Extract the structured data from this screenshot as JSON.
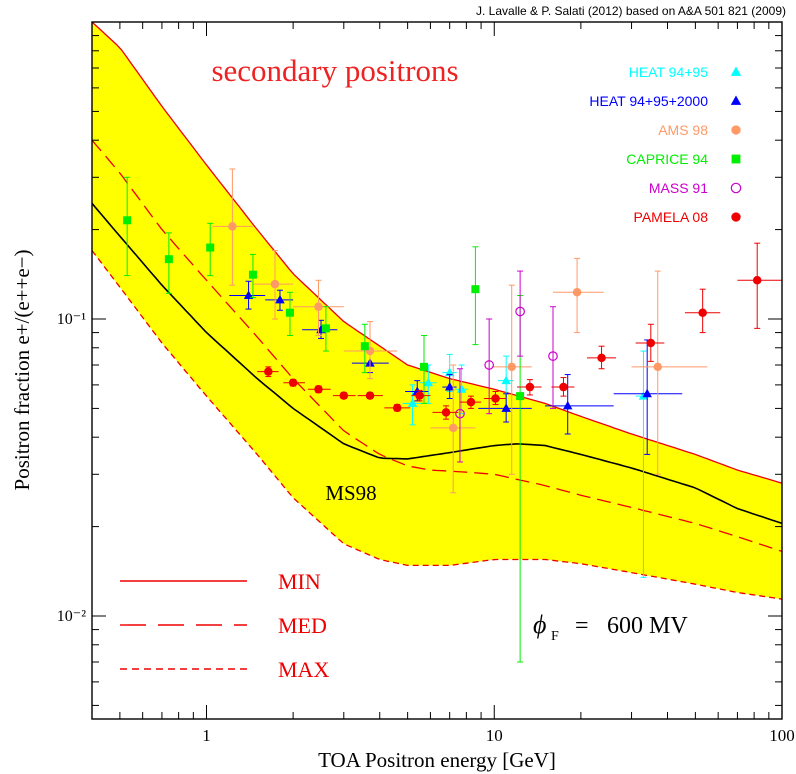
{
  "chart_data": {
    "type": "scatter",
    "credit": "J. Lavalle & P. Salati (2012) based on A&A 501 821 (2009)",
    "title": "secondary positrons",
    "xlabel": "TOA Positron energy  [GeV]",
    "ylabel": "Positron fraction e+/(e++e−)",
    "xscale": "log",
    "yscale": "log",
    "xlim": [
      0.4,
      100
    ],
    "ylim": [
      0.0045,
      1.0
    ],
    "x_ticks": [
      {
        "v": 1,
        "label": "1"
      },
      {
        "v": 10,
        "label": "10"
      },
      {
        "v": 100,
        "label": "100"
      }
    ],
    "y_ticks": [
      {
        "v": 0.1,
        "label": "10⁻¹"
      },
      {
        "v": 0.01,
        "label": "10⁻²"
      }
    ],
    "curve_label": "MS98",
    "phi_label": "600 MV",
    "phi_symbol": "ϕ",
    "phi_subscript": "F",
    "band_color": "#ffff00",
    "curves": {
      "min_upper": [
        [
          0.4,
          1.0
        ],
        [
          0.5,
          0.82
        ],
        [
          0.7,
          0.52
        ],
        [
          1.0,
          0.33
        ],
        [
          1.5,
          0.2
        ],
        [
          2.0,
          0.142
        ],
        [
          3.0,
          0.098
        ],
        [
          5.0,
          0.07
        ],
        [
          7.0,
          0.063
        ],
        [
          10.0,
          0.058
        ],
        [
          15.0,
          0.052
        ],
        [
          20.0,
          0.047
        ],
        [
          30.0,
          0.041
        ],
        [
          50.0,
          0.035
        ],
        [
          70.0,
          0.031
        ],
        [
          100.0,
          0.028
        ]
      ],
      "med": [
        [
          0.4,
          0.4
        ],
        [
          0.5,
          0.31
        ],
        [
          0.7,
          0.2
        ],
        [
          1.0,
          0.135
        ],
        [
          1.5,
          0.087
        ],
        [
          2.0,
          0.063
        ],
        [
          3.0,
          0.042
        ],
        [
          4.0,
          0.035
        ],
        [
          5.0,
          0.032
        ],
        [
          6.0,
          0.031
        ],
        [
          8.0,
          0.0305
        ],
        [
          10.0,
          0.03
        ],
        [
          15.0,
          0.0275
        ],
        [
          20.0,
          0.0255
        ],
        [
          30.0,
          0.0232
        ],
        [
          50.0,
          0.0205
        ],
        [
          70.0,
          0.0185
        ],
        [
          100.0,
          0.0165
        ]
      ],
      "max_lower": [
        [
          0.4,
          0.17
        ],
        [
          0.5,
          0.128
        ],
        [
          0.7,
          0.083
        ],
        [
          1.0,
          0.055
        ],
        [
          1.5,
          0.035
        ],
        [
          2.0,
          0.025
        ],
        [
          3.0,
          0.0175
        ],
        [
          4.0,
          0.0155
        ],
        [
          5.0,
          0.0148
        ],
        [
          7.0,
          0.0148
        ],
        [
          10.0,
          0.0155
        ],
        [
          15.0,
          0.0155
        ],
        [
          20.0,
          0.015
        ],
        [
          30.0,
          0.014
        ],
        [
          50.0,
          0.0128
        ],
        [
          70.0,
          0.012
        ],
        [
          100.0,
          0.0114
        ]
      ],
      "ms98": [
        [
          0.4,
          0.245
        ],
        [
          0.5,
          0.19
        ],
        [
          0.7,
          0.13
        ],
        [
          1.0,
          0.09
        ],
        [
          1.5,
          0.063
        ],
        [
          2.0,
          0.05
        ],
        [
          3.0,
          0.038
        ],
        [
          4.0,
          0.034
        ],
        [
          5.0,
          0.0338
        ],
        [
          7.0,
          0.0355
        ],
        [
          10.0,
          0.0375
        ],
        [
          12.0,
          0.038
        ],
        [
          15.0,
          0.0375
        ],
        [
          20.0,
          0.035
        ],
        [
          30.0,
          0.0315
        ],
        [
          50.0,
          0.027
        ],
        [
          70.0,
          0.023
        ],
        [
          100.0,
          0.0205
        ]
      ]
    },
    "series": [
      {
        "name": "HEAT 94+95",
        "color": "#00ffff",
        "marker": "triangle",
        "points": [
          {
            "x": 5.2,
            "y": 0.052,
            "ylo": 0.044,
            "yhi": 0.06,
            "xlo": 4.8,
            "xhi": 5.6
          },
          {
            "x": 5.9,
            "y": 0.061,
            "ylo": 0.052,
            "yhi": 0.07,
            "xlo": 5.5,
            "xhi": 6.3
          },
          {
            "x": 7.0,
            "y": 0.066,
            "ylo": 0.057,
            "yhi": 0.076,
            "xlo": 6.6,
            "xhi": 7.4
          },
          {
            "x": 7.7,
            "y": 0.058,
            "ylo": 0.048,
            "yhi": 0.07,
            "xlo": 7.3,
            "xhi": 8.1
          },
          {
            "x": 11.0,
            "y": 0.062,
            "ylo": 0.05,
            "yhi": 0.075,
            "xlo": 10.3,
            "xhi": 11.7
          },
          {
            "x": 33.0,
            "y": 0.055,
            "ylo": 0.0135,
            "yhi": 0.078,
            "xlo": 31.0,
            "xhi": 35.0
          }
        ]
      },
      {
        "name": "HEAT 94+95+2000",
        "color": "#0000ff",
        "marker": "triangle",
        "points": [
          {
            "x": 1.4,
            "y": 0.12,
            "ylo": 0.108,
            "yhi": 0.134,
            "xlo": 1.2,
            "xhi": 1.6
          },
          {
            "x": 1.8,
            "y": 0.116,
            "ylo": 0.107,
            "yhi": 0.125,
            "xlo": 1.6,
            "xhi": 2.0
          },
          {
            "x": 2.5,
            "y": 0.092,
            "ylo": 0.086,
            "yhi": 0.099,
            "xlo": 2.15,
            "xhi": 2.85
          },
          {
            "x": 3.7,
            "y": 0.071,
            "ylo": 0.066,
            "yhi": 0.077,
            "xlo": 3.2,
            "xhi": 4.3
          },
          {
            "x": 5.4,
            "y": 0.057,
            "ylo": 0.053,
            "yhi": 0.062,
            "xlo": 4.9,
            "xhi": 5.9
          },
          {
            "x": 7.0,
            "y": 0.059,
            "ylo": 0.054,
            "yhi": 0.065,
            "xlo": 6.6,
            "xhi": 7.4
          },
          {
            "x": 11.0,
            "y": 0.05,
            "ylo": 0.045,
            "yhi": 0.056,
            "xlo": 8.8,
            "xhi": 13.5
          },
          {
            "x": 18.0,
            "y": 0.051,
            "ylo": 0.041,
            "yhi": 0.065,
            "xlo": 15.0,
            "xhi": 26.0
          },
          {
            "x": 34.0,
            "y": 0.056,
            "ylo": 0.035,
            "yhi": 0.085,
            "xlo": 26.0,
            "xhi": 45.0
          }
        ]
      },
      {
        "name": "AMS 98",
        "color": "#ff9966",
        "marker": "circle",
        "points": [
          {
            "x": 1.23,
            "y": 0.205,
            "ylo": 0.13,
            "yhi": 0.32,
            "xlo": 1.05,
            "xhi": 1.45
          },
          {
            "x": 1.73,
            "y": 0.131,
            "ylo": 0.1,
            "yhi": 0.17,
            "xlo": 1.45,
            "xhi": 2.0
          },
          {
            "x": 2.45,
            "y": 0.11,
            "ylo": 0.088,
            "yhi": 0.135,
            "xlo": 2.0,
            "xhi": 3.0
          },
          {
            "x": 3.7,
            "y": 0.078,
            "ylo": 0.063,
            "yhi": 0.098,
            "xlo": 3.0,
            "xhi": 4.6
          },
          {
            "x": 7.2,
            "y": 0.043,
            "ylo": 0.026,
            "yhi": 0.07,
            "xlo": 6.0,
            "xhi": 8.6
          },
          {
            "x": 11.5,
            "y": 0.069,
            "ylo": 0.03,
            "yhi": 0.13,
            "xlo": 9.8,
            "xhi": 13.5
          },
          {
            "x": 19.4,
            "y": 0.123,
            "ylo": 0.09,
            "yhi": 0.16,
            "xlo": 16.0,
            "xhi": 24.0
          },
          {
            "x": 37.0,
            "y": 0.069,
            "ylo": 0.03,
            "yhi": 0.145,
            "xlo": 30.0,
            "xhi": 55.0
          }
        ]
      },
      {
        "name": "CAPRICE 94",
        "color": "#00ee00",
        "marker": "square",
        "points": [
          {
            "x": 0.53,
            "y": 0.215,
            "ylo": 0.14,
            "yhi": 0.3,
            "xlo": 0.53,
            "xhi": 0.53
          },
          {
            "x": 0.74,
            "y": 0.159,
            "ylo": 0.122,
            "yhi": 0.195,
            "xlo": 0.74,
            "xhi": 0.74
          },
          {
            "x": 1.03,
            "y": 0.174,
            "ylo": 0.14,
            "yhi": 0.21,
            "xlo": 1.03,
            "xhi": 1.03
          },
          {
            "x": 1.45,
            "y": 0.141,
            "ylo": 0.118,
            "yhi": 0.165,
            "xlo": 1.45,
            "xhi": 1.45
          },
          {
            "x": 1.95,
            "y": 0.105,
            "ylo": 0.088,
            "yhi": 0.123,
            "xlo": 1.95,
            "xhi": 1.95
          },
          {
            "x": 2.6,
            "y": 0.093,
            "ylo": 0.078,
            "yhi": 0.11,
            "xlo": 2.6,
            "xhi": 2.6
          },
          {
            "x": 3.55,
            "y": 0.081,
            "ylo": 0.066,
            "yhi": 0.096,
            "xlo": 3.55,
            "xhi": 3.55
          },
          {
            "x": 5.7,
            "y": 0.069,
            "ylo": 0.052,
            "yhi": 0.088,
            "xlo": 5.7,
            "xhi": 5.7
          },
          {
            "x": 8.6,
            "y": 0.126,
            "ylo": 0.082,
            "yhi": 0.175,
            "xlo": 8.6,
            "xhi": 8.6
          },
          {
            "x": 12.3,
            "y": 0.055,
            "ylo": 0.007,
            "yhi": 0.12,
            "xlo": 12.3,
            "xhi": 12.3
          }
        ]
      },
      {
        "name": "MASS 91",
        "color": "#cc00cc",
        "marker": "open-circle",
        "points": [
          {
            "x": 7.6,
            "y": 0.048,
            "ylo": 0.033,
            "yhi": 0.068,
            "xlo": 7.6,
            "xhi": 7.6
          },
          {
            "x": 9.6,
            "y": 0.07,
            "ylo": 0.048,
            "yhi": 0.1,
            "xlo": 9.6,
            "xhi": 9.6
          },
          {
            "x": 12.3,
            "y": 0.106,
            "ylo": 0.075,
            "yhi": 0.145,
            "xlo": 12.3,
            "xhi": 12.3
          },
          {
            "x": 16.0,
            "y": 0.075,
            "ylo": 0.05,
            "yhi": 0.11,
            "xlo": 16.0,
            "xhi": 16.0
          }
        ]
      },
      {
        "name": "PAMELA 08",
        "color": "#ee0000",
        "marker": "circle",
        "points": [
          {
            "x": 1.64,
            "y": 0.0665,
            "ylo": 0.064,
            "yhi": 0.069,
            "xlo": 1.5,
            "xhi": 1.78
          },
          {
            "x": 2.0,
            "y": 0.061,
            "ylo": 0.0595,
            "yhi": 0.0625,
            "xlo": 1.85,
            "xhi": 2.2
          },
          {
            "x": 2.45,
            "y": 0.058,
            "ylo": 0.0565,
            "yhi": 0.0595,
            "xlo": 2.25,
            "xhi": 2.7
          },
          {
            "x": 3.0,
            "y": 0.0552,
            "ylo": 0.054,
            "yhi": 0.0565,
            "xlo": 2.75,
            "xhi": 3.3
          },
          {
            "x": 3.7,
            "y": 0.0552,
            "ylo": 0.054,
            "yhi": 0.0565,
            "xlo": 3.35,
            "xhi": 4.1
          },
          {
            "x": 4.6,
            "y": 0.0502,
            "ylo": 0.049,
            "yhi": 0.0515,
            "xlo": 4.15,
            "xhi": 5.1
          },
          {
            "x": 5.5,
            "y": 0.0552,
            "ylo": 0.053,
            "yhi": 0.0575,
            "xlo": 5.15,
            "xhi": 6.0
          },
          {
            "x": 6.8,
            "y": 0.0485,
            "ylo": 0.046,
            "yhi": 0.051,
            "xlo": 6.1,
            "xhi": 7.5
          },
          {
            "x": 8.3,
            "y": 0.0525,
            "ylo": 0.05,
            "yhi": 0.055,
            "xlo": 7.6,
            "xhi": 9.0
          },
          {
            "x": 10.1,
            "y": 0.054,
            "ylo": 0.0515,
            "yhi": 0.057,
            "xlo": 9.2,
            "xhi": 11.0
          },
          {
            "x": 13.3,
            "y": 0.059,
            "ylo": 0.0555,
            "yhi": 0.0625,
            "xlo": 12.0,
            "xhi": 14.6
          },
          {
            "x": 17.4,
            "y": 0.059,
            "ylo": 0.055,
            "yhi": 0.0635,
            "xlo": 15.8,
            "xhi": 19.0
          },
          {
            "x": 23.6,
            "y": 0.074,
            "ylo": 0.068,
            "yhi": 0.081,
            "xlo": 21.0,
            "xhi": 26.5
          },
          {
            "x": 35.0,
            "y": 0.083,
            "ylo": 0.072,
            "yhi": 0.096,
            "xlo": 31.0,
            "xhi": 39.0
          },
          {
            "x": 53.0,
            "y": 0.105,
            "ylo": 0.09,
            "yhi": 0.126,
            "xlo": 46.0,
            "xhi": 61.0
          },
          {
            "x": 82.0,
            "y": 0.135,
            "ylo": 0.093,
            "yhi": 0.18,
            "xlo": 70.0,
            "xhi": 100.0
          }
        ]
      }
    ],
    "line_legend": [
      {
        "name": "MIN",
        "dash": ""
      },
      {
        "name": "MED",
        "dash": "26 12"
      },
      {
        "name": "MAX",
        "dash": "7 5"
      }
    ]
  }
}
